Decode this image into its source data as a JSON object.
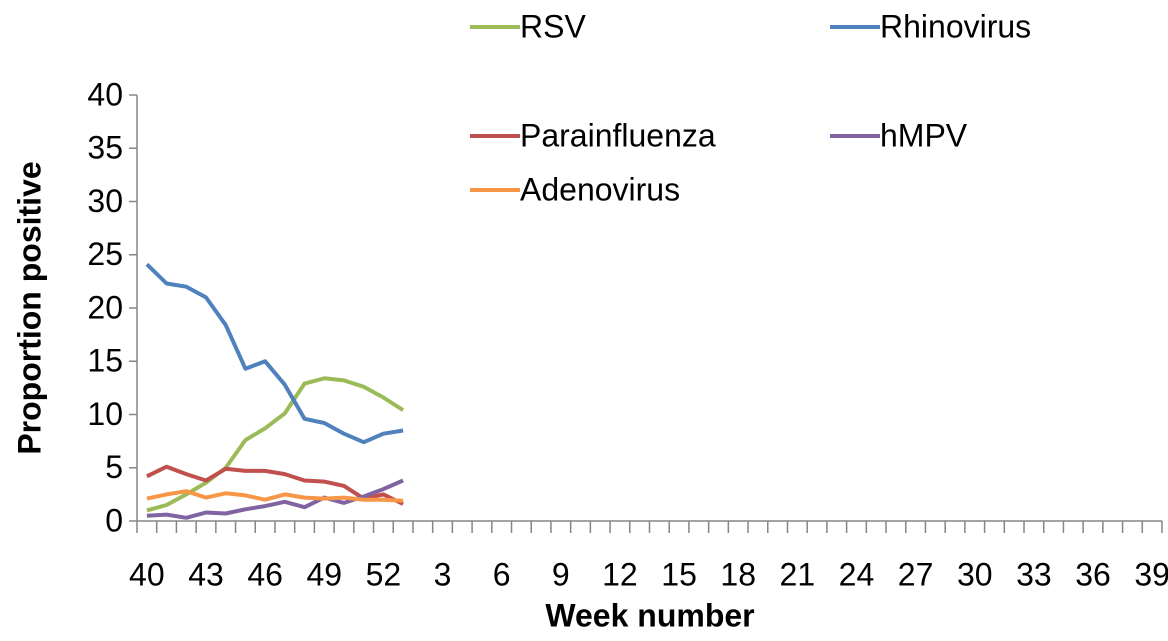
{
  "chart_data": {
    "type": "line",
    "x_label": "Week number",
    "y_label": "Proportion positive",
    "categories": [
      "40",
      null,
      null,
      "43",
      null,
      null,
      "46",
      null,
      null,
      "49",
      null,
      null,
      "52",
      null,
      null,
      "3",
      null,
      null,
      "6",
      null,
      null,
      "9",
      null,
      null,
      "12",
      null,
      null,
      "15",
      null,
      null,
      "18",
      null,
      null,
      "21",
      null,
      null,
      "24",
      null,
      null,
      "27",
      null,
      null,
      "30",
      null,
      null,
      "33",
      null,
      null,
      "36",
      null,
      null,
      "39"
    ],
    "ylim": [
      0,
      40
    ],
    "yticks": [
      0,
      5,
      10,
      15,
      20,
      25,
      30,
      35,
      40
    ],
    "grid": false,
    "legend_position": "top",
    "series": [
      {
        "name": "RSV",
        "color": "#9bbb59",
        "values": [
          1.0,
          1.5,
          2.5,
          3.6,
          5.0,
          7.6,
          8.7,
          10.1,
          12.9,
          13.4,
          13.2,
          12.6,
          11.6,
          10.4,
          null,
          null,
          null,
          null,
          null,
          null,
          null,
          null,
          null,
          null,
          null,
          null,
          null,
          null,
          null,
          null,
          null,
          null,
          null,
          null,
          null,
          null,
          null,
          null,
          null,
          null,
          null,
          null,
          null,
          null,
          null,
          null,
          null,
          null,
          null,
          null,
          null,
          null
        ]
      },
      {
        "name": "Rhinovirus",
        "color": "#4f81bd",
        "values": [
          24.1,
          22.3,
          22.0,
          21.0,
          18.4,
          14.3,
          15.0,
          12.8,
          9.6,
          9.2,
          8.2,
          7.4,
          8.2,
          8.5,
          null,
          null,
          null,
          null,
          null,
          null,
          null,
          null,
          null,
          null,
          null,
          null,
          null,
          null,
          null,
          null,
          null,
          null,
          null,
          null,
          null,
          null,
          null,
          null,
          null,
          null,
          null,
          null,
          null,
          null,
          null,
          null,
          null,
          null,
          null,
          null,
          null,
          null
        ]
      },
      {
        "name": "Parainfluenza",
        "color": "#c0504d",
        "values": [
          4.2,
          5.1,
          4.4,
          3.8,
          4.9,
          4.7,
          4.7,
          4.4,
          3.8,
          3.7,
          3.3,
          2.1,
          2.5,
          1.6,
          null,
          null,
          null,
          null,
          null,
          null,
          null,
          null,
          null,
          null,
          null,
          null,
          null,
          null,
          null,
          null,
          null,
          null,
          null,
          null,
          null,
          null,
          null,
          null,
          null,
          null,
          null,
          null,
          null,
          null,
          null,
          null,
          null,
          null,
          null,
          null,
          null,
          null
        ]
      },
      {
        "name": "hMPV",
        "color": "#8064a2",
        "values": [
          0.5,
          0.6,
          0.3,
          0.8,
          0.7,
          1.1,
          1.4,
          1.8,
          1.3,
          2.2,
          1.7,
          2.3,
          3.0,
          3.8,
          null,
          null,
          null,
          null,
          null,
          null,
          null,
          null,
          null,
          null,
          null,
          null,
          null,
          null,
          null,
          null,
          null,
          null,
          null,
          null,
          null,
          null,
          null,
          null,
          null,
          null,
          null,
          null,
          null,
          null,
          null,
          null,
          null,
          null,
          null,
          null,
          null,
          null
        ]
      },
      {
        "name": "Adenovirus",
        "color": "#f79646",
        "values": [
          2.1,
          2.5,
          2.8,
          2.2,
          2.6,
          2.4,
          2.0,
          2.5,
          2.2,
          2.1,
          2.2,
          2.0,
          2.0,
          1.9,
          null,
          null,
          null,
          null,
          null,
          null,
          null,
          null,
          null,
          null,
          null,
          null,
          null,
          null,
          null,
          null,
          null,
          null,
          null,
          null,
          null,
          null,
          null,
          null,
          null,
          null,
          null,
          null,
          null,
          null,
          null,
          null,
          null,
          null,
          null,
          null,
          null,
          null
        ]
      }
    ]
  }
}
